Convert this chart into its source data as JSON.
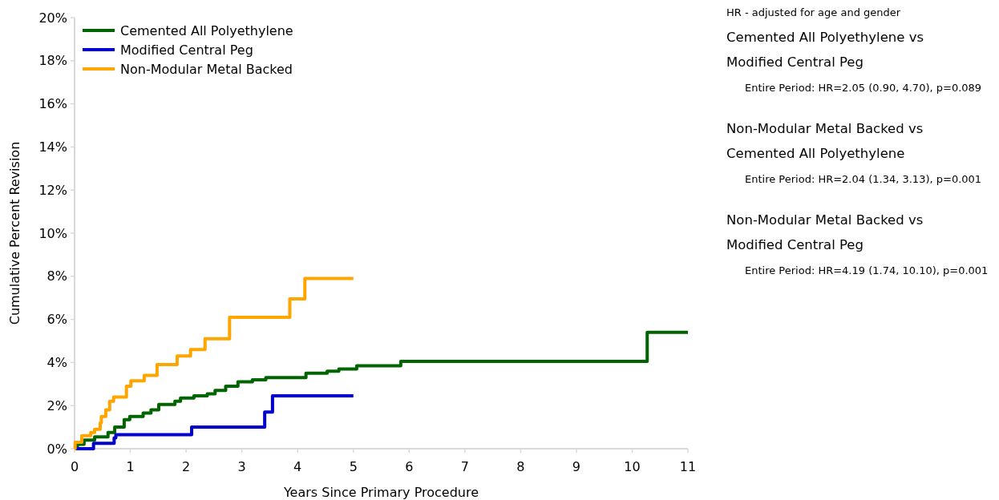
{
  "chart_data": {
    "type": "step",
    "xlabel": "Years Since Primary Procedure",
    "ylabel": "Cumulative Percent Revision",
    "xlim": [
      0,
      11
    ],
    "xticks": [
      0,
      1,
      2,
      3,
      4,
      5,
      6,
      7,
      8,
      9,
      10,
      11
    ],
    "ylim": [
      0,
      20
    ],
    "yticks": [
      {
        "value": 0,
        "label": "0%"
      },
      {
        "value": 2,
        "label": "2%"
      },
      {
        "value": 4,
        "label": "4%"
      },
      {
        "value": 6,
        "label": "6%"
      },
      {
        "value": 8,
        "label": "8%"
      },
      {
        "value": 10,
        "label": "10%"
      },
      {
        "value": 12,
        "label": "12%"
      },
      {
        "value": 14,
        "label": "14%"
      },
      {
        "value": 16,
        "label": "16%"
      },
      {
        "value": 18,
        "label": "18%"
      },
      {
        "value": 20,
        "label": "20%"
      }
    ],
    "grid": false,
    "legend": "top left",
    "series": [
      {
        "name": "Cemented All Polyethylene",
        "color": "#006400",
        "x": [
          0,
          0.05,
          0.17,
          0.36,
          0.6,
          0.72,
          0.89,
          0.99,
          1.23,
          1.37,
          1.51,
          1.8,
          1.9,
          2.14,
          2.38,
          2.52,
          2.71,
          2.93,
          3.19,
          3.43,
          4.15,
          4.53,
          4.74,
          5.06,
          5.85,
          10.27,
          11
        ],
        "values": [
          0,
          0.2,
          0.4,
          0.55,
          0.75,
          1.0,
          1.35,
          1.5,
          1.65,
          1.8,
          2.05,
          2.2,
          2.35,
          2.45,
          2.55,
          2.7,
          2.9,
          3.1,
          3.2,
          3.3,
          3.5,
          3.6,
          3.7,
          3.85,
          4.05,
          5.4,
          5.4
        ]
      },
      {
        "name": "Modified Central Peg",
        "color": "#0000cd",
        "x": [
          0,
          0.34,
          0.71,
          0.74,
          2.1,
          3.41,
          3.55,
          5.0
        ],
        "values": [
          0,
          0.25,
          0.5,
          0.65,
          1.0,
          1.7,
          2.45,
          2.45
        ]
      },
      {
        "name": "Non-Modular Metal Backed",
        "color": "#ffa500",
        "x": [
          0,
          0.01,
          0.13,
          0.29,
          0.36,
          0.46,
          0.48,
          0.56,
          0.63,
          0.7,
          0.93,
          1.01,
          1.25,
          1.48,
          1.84,
          2.08,
          2.34,
          2.78,
          3.86,
          4.13,
          5.0
        ],
        "values": [
          0,
          0.3,
          0.6,
          0.75,
          0.9,
          1.2,
          1.5,
          1.8,
          2.2,
          2.4,
          2.9,
          3.15,
          3.4,
          3.9,
          4.3,
          4.6,
          5.1,
          6.1,
          6.95,
          7.9,
          7.9
        ]
      }
    ],
    "annotations": [
      "HR - adjusted for age and gender",
      "Cemented All Polyethylene vs",
      "Modified Central Peg",
      "Entire Period: HR=2.05 (0.90, 4.70), p=0.089",
      "Non-Modular Metal Backed vs",
      "Cemented All Polyethylene",
      "Entire Period: HR=2.04 (1.34, 3.13), p=0.001",
      "Non-Modular Metal Backed vs",
      "Modified Central Peg",
      "Entire Period: HR=4.19 (1.74, 10.10), p=0.001"
    ]
  }
}
